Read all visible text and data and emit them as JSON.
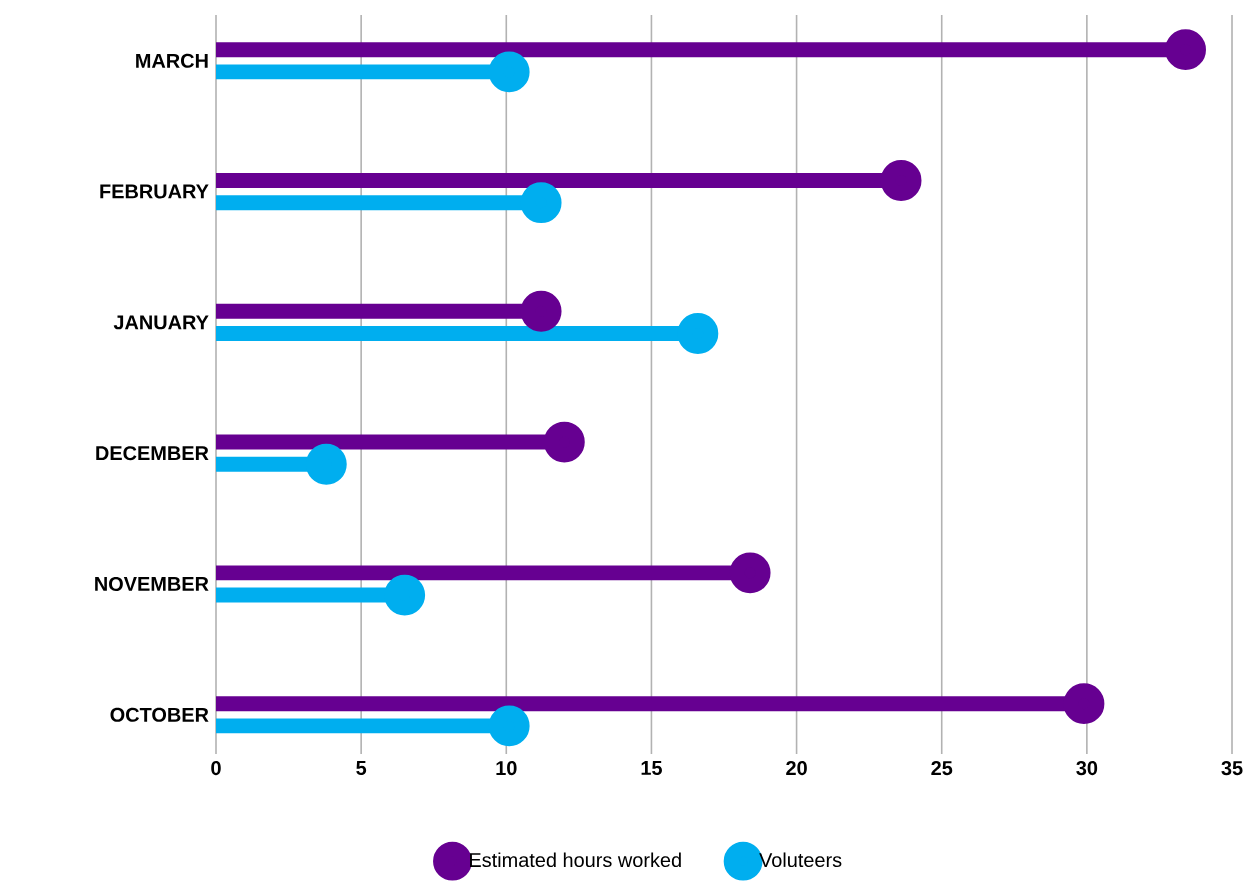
{
  "chart_data": {
    "type": "lollipop",
    "orientation": "horizontal",
    "categories": [
      "MARCH",
      "FEBRUARY",
      "JANUARY",
      "DECEMBER",
      "NOVEMBER",
      "OCTOBER"
    ],
    "series": [
      {
        "name": "Estimated hours worked",
        "color": "#660091",
        "values": [
          33.4,
          23.6,
          11.2,
          12.0,
          18.4,
          29.9
        ]
      },
      {
        "name": "Voluteers",
        "color": "#00aeef",
        "values": [
          10.1,
          11.2,
          16.6,
          3.8,
          6.5,
          10.1
        ]
      }
    ],
    "xlim": [
      0,
      35
    ],
    "xticks": [
      0,
      5,
      10,
      15,
      20,
      25,
      30,
      35
    ],
    "grid": "x",
    "legend": "bottom",
    "marker": "circle"
  }
}
